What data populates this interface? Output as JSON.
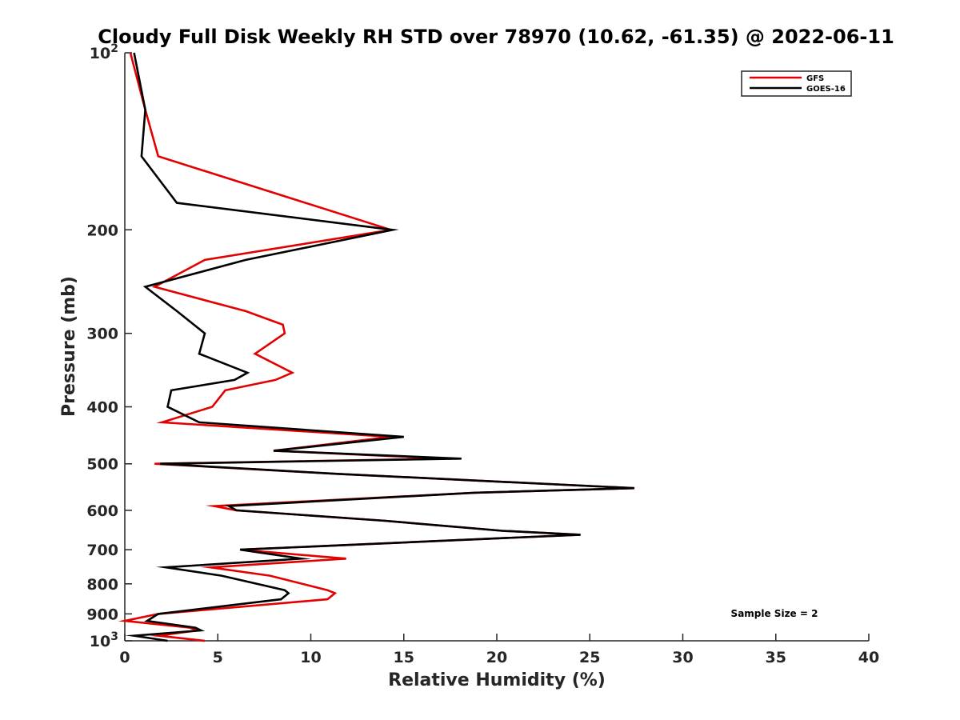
{
  "chart_data": {
    "type": "line",
    "title": "Cloudy Full Disk Weekly RH STD over 78970 (10.62, -61.35) @ 2022-06-11",
    "xlabel": "Relative Humidity (%)",
    "ylabel": "Pressure (mb)",
    "xlim": [
      0,
      40
    ],
    "ylim": [
      100,
      1000
    ],
    "y_scale": "log",
    "y_reversed": true,
    "x_ticks": [
      "0",
      "5",
      "10",
      "15",
      "20",
      "25",
      "30",
      "35",
      "40"
    ],
    "y_ticks": [
      {
        "value": 100,
        "base": "10",
        "exp": "2"
      },
      {
        "value": 200,
        "label": "200"
      },
      {
        "value": 300,
        "label": "300"
      },
      {
        "value": 400,
        "label": "400"
      },
      {
        "value": 500,
        "label": "500"
      },
      {
        "value": 600,
        "label": "600"
      },
      {
        "value": 700,
        "label": "700"
      },
      {
        "value": 800,
        "label": "800"
      },
      {
        "value": 900,
        "label": "900"
      },
      {
        "value": 1000,
        "base": "10",
        "exp": "3"
      }
    ],
    "legend_position": "top-right",
    "annotation": "Sample Size = 2",
    "series": [
      {
        "name": "GFS",
        "color": "#e30000",
        "points": [
          [
            0.3,
            100
          ],
          [
            1.1,
            125
          ],
          [
            1.8,
            150
          ],
          [
            14.3,
            200
          ],
          [
            4.3,
            225
          ],
          [
            1.6,
            250
          ],
          [
            6.5,
            275
          ],
          [
            8.5,
            290
          ],
          [
            8.6,
            300
          ],
          [
            7.0,
            325
          ],
          [
            9.0,
            350
          ],
          [
            8.1,
            360
          ],
          [
            5.4,
            375
          ],
          [
            4.7,
            400
          ],
          [
            2.0,
            425
          ],
          [
            14.3,
            450
          ],
          [
            8.0,
            475
          ],
          [
            17.2,
            490
          ],
          [
            1.6,
            500
          ],
          [
            11.4,
            520
          ],
          [
            27.4,
            550
          ],
          [
            18.8,
            560
          ],
          [
            4.8,
            590
          ],
          [
            6.0,
            600
          ],
          [
            14.0,
            625
          ],
          [
            20.3,
            650
          ],
          [
            24.5,
            660
          ],
          [
            6.2,
            700
          ],
          [
            11.9,
            725
          ],
          [
            4.6,
            750
          ],
          [
            7.8,
            775
          ],
          [
            10.9,
            820
          ],
          [
            11.3,
            830
          ],
          [
            10.9,
            850
          ],
          [
            1.8,
            900
          ],
          [
            0.0,
            925
          ],
          [
            3.5,
            950
          ],
          [
            3.9,
            960
          ],
          [
            1.8,
            980
          ],
          [
            4.3,
            1000
          ]
        ]
      },
      {
        "name": "GOES-16",
        "color": "#000000",
        "points": [
          [
            0.5,
            100
          ],
          [
            1.1,
            125
          ],
          [
            0.9,
            150
          ],
          [
            2.8,
            180
          ],
          [
            14.4,
            200
          ],
          [
            6.5,
            225
          ],
          [
            1.1,
            250
          ],
          [
            2.8,
            275
          ],
          [
            4.3,
            300
          ],
          [
            4.0,
            325
          ],
          [
            6.6,
            350
          ],
          [
            5.9,
            360
          ],
          [
            2.5,
            375
          ],
          [
            2.3,
            400
          ],
          [
            4.0,
            425
          ],
          [
            15.0,
            450
          ],
          [
            8.0,
            475
          ],
          [
            18.1,
            490
          ],
          [
            1.9,
            500
          ],
          [
            11.4,
            520
          ],
          [
            27.4,
            550
          ],
          [
            18.8,
            560
          ],
          [
            5.6,
            590
          ],
          [
            6.0,
            600
          ],
          [
            14.0,
            625
          ],
          [
            20.3,
            650
          ],
          [
            24.5,
            660
          ],
          [
            6.2,
            700
          ],
          [
            9.5,
            725
          ],
          [
            2.2,
            750
          ],
          [
            5.2,
            775
          ],
          [
            8.6,
            820
          ],
          [
            8.8,
            830
          ],
          [
            8.4,
            850
          ],
          [
            1.8,
            900
          ],
          [
            1.2,
            925
          ],
          [
            3.8,
            950
          ],
          [
            4.1,
            960
          ],
          [
            0.5,
            980
          ],
          [
            2.3,
            1000
          ]
        ]
      }
    ]
  }
}
